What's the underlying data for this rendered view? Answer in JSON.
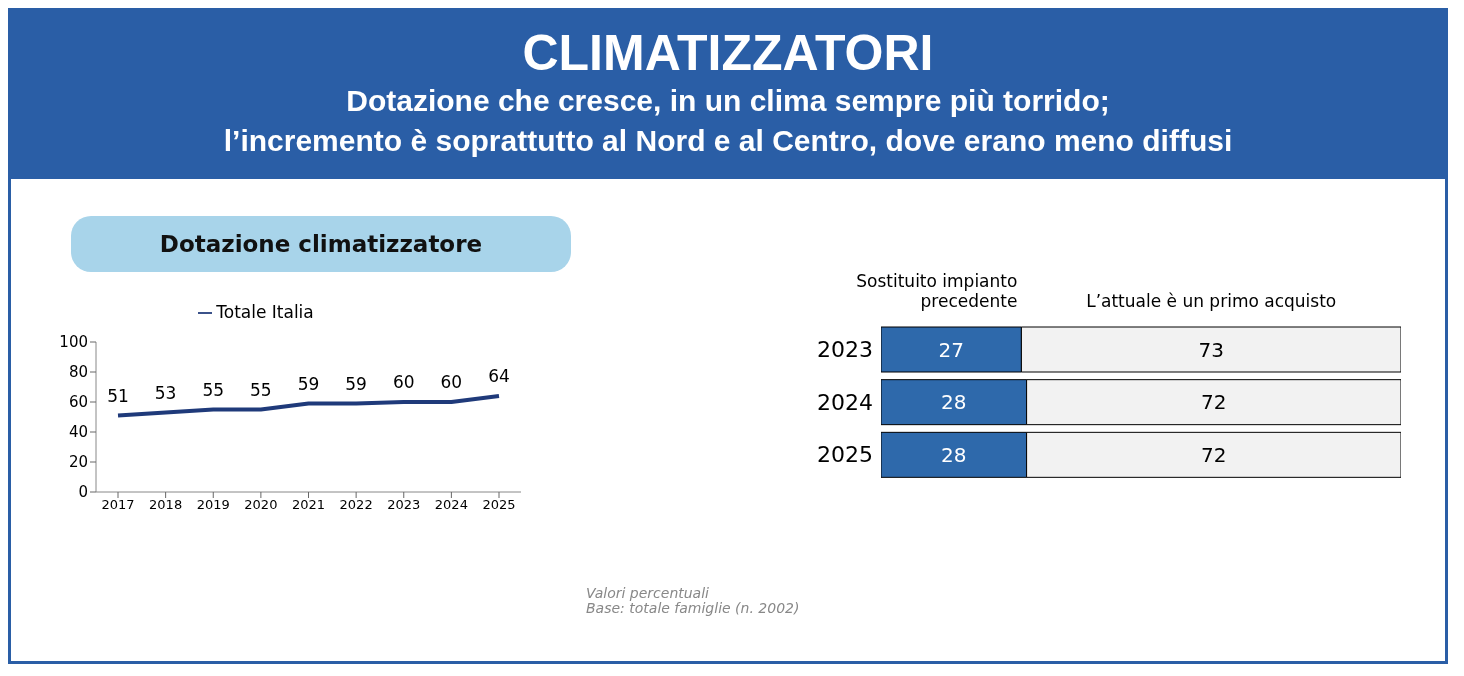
{
  "chart_data": [
    {
      "type": "other",
      "title": "CLIMATIZZATORI",
      "subtitle": "Dotazione che cresce, in un clima sempre più torrido;\nl’incremento è soprattutto al Nord e al Centro, dove erano meno diffusi"
    },
    {
      "type": "line",
      "title": "Dotazione climatizzatore",
      "categories": [
        "2017",
        "2018",
        "2019",
        "2020",
        "2021",
        "2022",
        "2023",
        "2024",
        "2025"
      ],
      "series": [
        {
          "name": "Totale Italia",
          "color": "#1f3a7a",
          "values": [
            51,
            53,
            55,
            55,
            59,
            59,
            60,
            60,
            64
          ]
        }
      ],
      "ylim": [
        0,
        100
      ],
      "yticks": [
        0,
        20,
        40,
        60,
        80,
        100
      ],
      "data_labels": true,
      "legend": "top"
    },
    {
      "type": "bar",
      "orientation": "horizontal",
      "stacked": true,
      "categories": [
        "2023",
        "2024",
        "2025"
      ],
      "series": [
        {
          "name": "Sostituito impianto precedente",
          "color": "#2e69ab",
          "values": [
            27,
            28,
            28
          ]
        },
        {
          "name": "L’attuale è un primo acquisto",
          "color": "#f2f2f2",
          "values": [
            73,
            72,
            72
          ]
        }
      ],
      "data_labels": true,
      "legend": "top",
      "tick_labels": "y",
      "annotations": [
        "Valori percentuali",
        "Base:  totale famiglie (n. 2002)"
      ]
    }
  ]
}
